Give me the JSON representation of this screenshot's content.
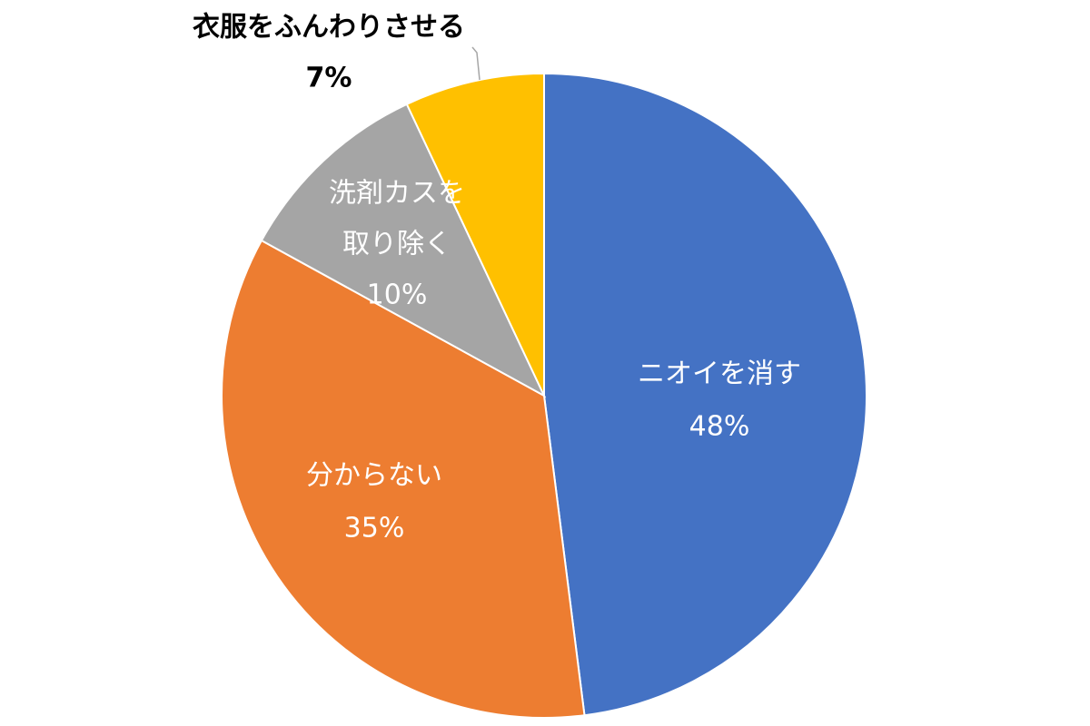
{
  "chart_data": {
    "type": "pie",
    "start_angle_deg": 0,
    "direction": "clockwise",
    "slices": [
      {
        "label_lines": [
          "ニオイを消す"
        ],
        "value_label": "48%",
        "value": 48,
        "color": "#4472c4",
        "label_color": "#ffffff"
      },
      {
        "label_lines": [
          "分からない"
        ],
        "value_label": "35%",
        "value": 35,
        "color": "#ed7d31",
        "label_color": "#ffffff"
      },
      {
        "label_lines": [
          "洗剤カスを",
          "取り除く"
        ],
        "value_label": "10%",
        "value": 10,
        "color": "#a5a5a5",
        "label_color": "#ffffff"
      },
      {
        "label_lines": [
          "衣服をふんわりさせる"
        ],
        "value_label": "7%",
        "value": 7,
        "color": "#ffc000",
        "label_color": "#000000"
      }
    ],
    "legend": "none"
  }
}
